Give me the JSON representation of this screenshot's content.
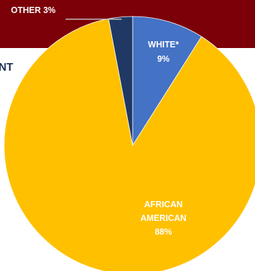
{
  "page": {
    "heading_fragment": "NT",
    "banner_color": "#7b0008"
  },
  "chart_data": {
    "type": "pie",
    "title": "",
    "start_angle_deg": 0,
    "direction": "clockwise",
    "slices": [
      {
        "label": "WHITE*",
        "value": 9,
        "value_text": "9%",
        "color": "#4472c4"
      },
      {
        "label": "AFRICAN AMERICAN",
        "label_lines": [
          "AFRICAN",
          "AMERICAN"
        ],
        "value": 88,
        "value_text": "88%",
        "color": "#ffc000"
      },
      {
        "label": "OTHER",
        "value": 3,
        "value_text": "OTHER 3%",
        "color": "#203864"
      }
    ],
    "leader_line_color": "#bfbfbf"
  }
}
